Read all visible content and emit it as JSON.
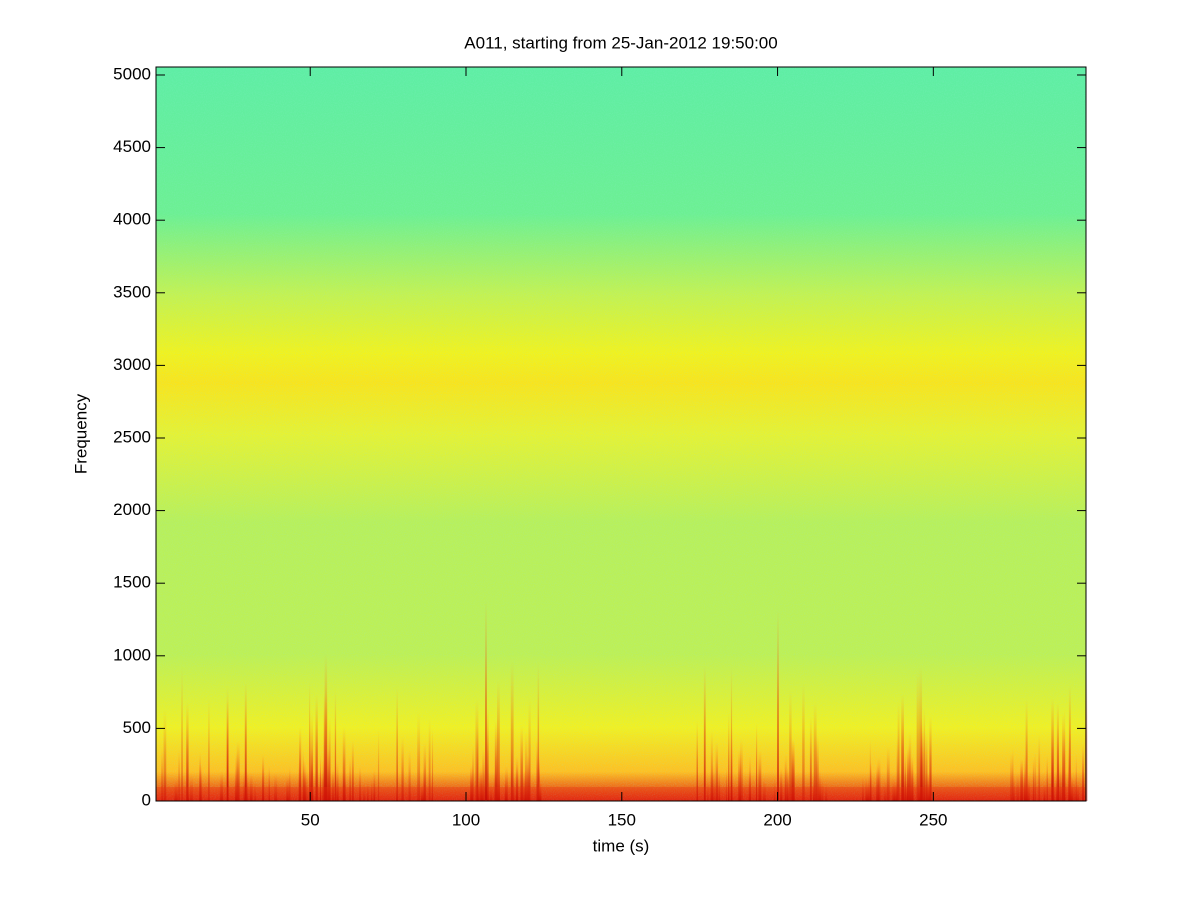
{
  "chart_data": {
    "type": "spectrogram",
    "title": "A011, starting from 25-Jan-2012 19:50:00",
    "x_label": "time (s)",
    "y_label": "Frequency",
    "xlim": [
      0.5,
      299
    ],
    "xticks": [
      50,
      100,
      150,
      200,
      250
    ],
    "ylim": [
      0,
      5055
    ],
    "yticks": [
      0,
      500,
      1000,
      1500,
      2000,
      2500,
      3000,
      3500,
      4000,
      4500,
      5000
    ]
  }
}
